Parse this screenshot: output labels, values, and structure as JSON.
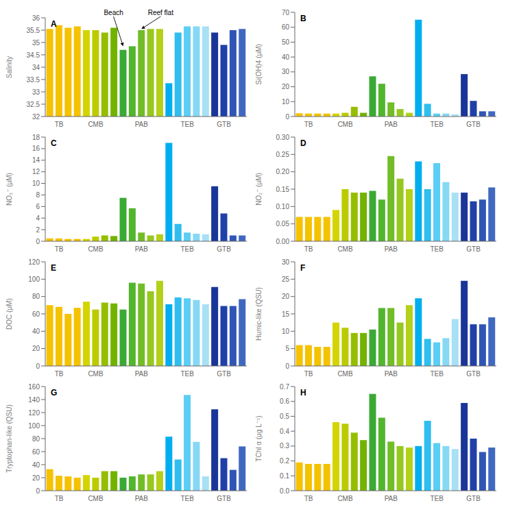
{
  "chart_data": [
    {
      "type": "bar",
      "title": "A",
      "ylabel": "Salinity",
      "grid": false,
      "categories": [
        null,
        "TB",
        null,
        null,
        null,
        "CMB",
        null,
        null,
        null,
        null,
        "PAB",
        null,
        null,
        null,
        null,
        "TEB",
        null,
        null,
        null,
        "GTB",
        null,
        null
      ],
      "values": [
        35.55,
        35.7,
        35.6,
        35.65,
        35.5,
        35.5,
        35.4,
        35.6,
        34.7,
        34.85,
        35.5,
        35.55,
        35.55,
        33.35,
        35.4,
        35.65,
        35.65,
        35.65,
        35.4,
        34.9,
        35.5,
        35.55
      ],
      "colors": [
        "#F5C200",
        "#F5C200",
        "#F5C200",
        "#F5C200",
        "#D4D400",
        "#BCCB00",
        "#96BE00",
        "#72B300",
        "#3AAA35",
        "#52B52E",
        "#72BC28",
        "#96C820",
        "#B5D018",
        "#00AEEF",
        "#30BDEF",
        "#5CCEF5",
        "#86D8F5",
        "#A8E0F5",
        "#1A3598",
        "#2040A8",
        "#3055B5",
        "#4068C0"
      ],
      "ylim": [
        32,
        36
      ],
      "yticks": [
        32,
        32.5,
        33,
        33.5,
        34,
        34.5,
        35,
        35.5,
        36
      ],
      "annotations": [
        {
          "text": "Beach",
          "x": 8,
          "y": 34.85
        },
        {
          "text": "Reef flat",
          "x": 10,
          "y": 35.55
        }
      ]
    },
    {
      "type": "bar",
      "title": "B",
      "ylabel": "Si(OH)4 (μM)",
      "grid": false,
      "categories": [
        null,
        "TB",
        null,
        null,
        null,
        "CMB",
        null,
        null,
        null,
        null,
        "PAB",
        null,
        null,
        null,
        null,
        "TEB",
        null,
        null,
        null,
        "GTB",
        null,
        null
      ],
      "values": [
        2.2,
        2,
        2,
        2,
        2,
        2.5,
        6.5,
        2.5,
        27,
        22,
        9.5,
        5,
        2.5,
        65,
        8.5,
        2,
        2,
        1.5,
        28.5,
        10.5,
        3.5,
        3.5
      ],
      "colors": [
        "#F5C200",
        "#F5C200",
        "#F5C200",
        "#F5C200",
        "#D4D400",
        "#BCCB00",
        "#96BE00",
        "#72B300",
        "#3AAA35",
        "#52B52E",
        "#72BC28",
        "#96C820",
        "#B5D018",
        "#00AEEF",
        "#30BDEF",
        "#5CCEF5",
        "#86D8F5",
        "#A8E0F5",
        "#1A3598",
        "#2040A8",
        "#3055B5",
        "#4068C0"
      ],
      "ylim": [
        0,
        70
      ],
      "yticks": [
        0,
        10,
        20,
        30,
        40,
        50,
        60,
        70
      ]
    },
    {
      "type": "bar",
      "title": "C",
      "ylabel": "NO₃⁻ (μM)",
      "grid": false,
      "categories": [
        null,
        "TB",
        null,
        null,
        null,
        "CMB",
        null,
        null,
        null,
        null,
        "PAB",
        null,
        null,
        null,
        null,
        "TEB",
        null,
        null,
        null,
        "GTB",
        null,
        null
      ],
      "values": [
        0.5,
        0.5,
        0.4,
        0.4,
        0.4,
        0.8,
        1,
        0.9,
        7.5,
        5.7,
        1.5,
        1,
        1.2,
        17,
        3,
        1.5,
        1.3,
        1.2,
        9.5,
        4.8,
        1,
        1
      ],
      "colors": [
        "#F5C200",
        "#F5C200",
        "#F5C200",
        "#F5C200",
        "#D4D400",
        "#BCCB00",
        "#96BE00",
        "#72B300",
        "#3AAA35",
        "#52B52E",
        "#72BC28",
        "#96C820",
        "#B5D018",
        "#00AEEF",
        "#30BDEF",
        "#5CCEF5",
        "#86D8F5",
        "#A8E0F5",
        "#1A3598",
        "#2040A8",
        "#3055B5",
        "#4068C0"
      ],
      "ylim": [
        0,
        18
      ],
      "yticks": [
        0,
        2,
        4,
        6,
        8,
        10,
        12,
        14,
        16,
        18
      ]
    },
    {
      "type": "bar",
      "title": "D",
      "ylabel": "NO₂⁻ (μM)",
      "grid": false,
      "categories": [
        null,
        "TB",
        null,
        null,
        null,
        "CMB",
        null,
        null,
        null,
        null,
        "PAB",
        null,
        null,
        null,
        null,
        "TEB",
        null,
        null,
        null,
        "GTB",
        null,
        null
      ],
      "values": [
        0.07,
        0.07,
        0.07,
        0.07,
        0.09,
        0.15,
        0.14,
        0.14,
        0.145,
        0.12,
        0.245,
        0.18,
        0.15,
        0.23,
        0.15,
        0.225,
        0.17,
        0.14,
        0.14,
        0.115,
        0.12,
        0.155
      ],
      "colors": [
        "#F5C200",
        "#F5C200",
        "#F5C200",
        "#F5C200",
        "#D4D400",
        "#BCCB00",
        "#96BE00",
        "#72B300",
        "#3AAA35",
        "#52B52E",
        "#72BC28",
        "#96C820",
        "#B5D018",
        "#00AEEF",
        "#30BDEF",
        "#5CCEF5",
        "#86D8F5",
        "#A8E0F5",
        "#1A3598",
        "#2040A8",
        "#3055B5",
        "#4068C0"
      ],
      "ylim": [
        0,
        0.3
      ],
      "yticks": [
        {
          "value": 0,
          "label": "0.00"
        },
        0.05,
        {
          "value": 0.1,
          "label": "0.10"
        },
        0.15,
        {
          "value": 0.2,
          "label": "0.20"
        },
        0.25,
        {
          "value": 0.3,
          "label": "0.30"
        }
      ]
    },
    {
      "type": "bar",
      "title": "E",
      "ylabel": "DOC (μM)",
      "grid": false,
      "categories": [
        null,
        "TB",
        null,
        null,
        null,
        "CMB",
        null,
        null,
        null,
        null,
        "PAB",
        null,
        null,
        null,
        null,
        "TEB",
        null,
        null,
        null,
        "GTB",
        null,
        null
      ],
      "values": [
        70,
        68,
        60,
        67,
        74,
        65,
        73,
        72,
        65,
        96,
        95,
        86,
        98,
        71,
        79,
        78,
        76,
        71,
        91,
        69,
        69,
        77
      ],
      "colors": [
        "#F5C200",
        "#F5C200",
        "#F5C200",
        "#F5C200",
        "#D4D400",
        "#BCCB00",
        "#96BE00",
        "#72B300",
        "#3AAA35",
        "#52B52E",
        "#72BC28",
        "#96C820",
        "#B5D018",
        "#00AEEF",
        "#30BDEF",
        "#5CCEF5",
        "#86D8F5",
        "#A8E0F5",
        "#1A3598",
        "#2040A8",
        "#3055B5",
        "#4068C0"
      ],
      "ylim": [
        0,
        120
      ],
      "yticks": [
        0,
        20,
        40,
        60,
        80,
        100,
        120
      ]
    },
    {
      "type": "bar",
      "title": "F",
      "ylabel": "Humic-like (QSU)",
      "grid": false,
      "categories": [
        null,
        "TB",
        null,
        null,
        null,
        "CMB",
        null,
        null,
        null,
        null,
        "PAB",
        null,
        null,
        null,
        null,
        "TEB",
        null,
        null,
        null,
        "GTB",
        null,
        null
      ],
      "values": [
        6,
        6,
        5.5,
        5.5,
        12.5,
        11,
        9.5,
        9.5,
        10.5,
        16.7,
        16.7,
        12.5,
        17.5,
        19.5,
        7.8,
        6.8,
        8,
        13.5,
        24.5,
        12,
        12,
        14
      ],
      "colors": [
        "#F5C200",
        "#F5C200",
        "#F5C200",
        "#F5C200",
        "#D4D400",
        "#BCCB00",
        "#96BE00",
        "#72B300",
        "#3AAA35",
        "#52B52E",
        "#72BC28",
        "#96C820",
        "#B5D018",
        "#00AEEF",
        "#30BDEF",
        "#5CCEF5",
        "#86D8F5",
        "#A8E0F5",
        "#1A3598",
        "#2040A8",
        "#3055B5",
        "#4068C0"
      ],
      "ylim": [
        0,
        30
      ],
      "yticks": [
        0,
        5,
        10,
        15,
        20,
        25,
        30
      ]
    },
    {
      "type": "bar",
      "title": "G",
      "ylabel": "Tryptophan-like (QSU)",
      "grid": false,
      "categories": [
        null,
        "TB",
        null,
        null,
        null,
        "CMB",
        null,
        null,
        null,
        null,
        "PAB",
        null,
        null,
        null,
        null,
        "TEB",
        null,
        null,
        null,
        "GTB",
        null,
        null
      ],
      "values": [
        33,
        23,
        22,
        20,
        24,
        20,
        30,
        30,
        20,
        22,
        25,
        25,
        30,
        83,
        48,
        147,
        75,
        22,
        125,
        50,
        32,
        68
      ],
      "colors": [
        "#F5C200",
        "#F5C200",
        "#F5C200",
        "#F5C200",
        "#D4D400",
        "#BCCB00",
        "#96BE00",
        "#72B300",
        "#3AAA35",
        "#52B52E",
        "#72BC28",
        "#96C820",
        "#B5D018",
        "#00AEEF",
        "#30BDEF",
        "#5CCEF5",
        "#86D8F5",
        "#A8E0F5",
        "#1A3598",
        "#2040A8",
        "#3055B5",
        "#4068C0"
      ],
      "ylim": [
        0,
        160
      ],
      "yticks": [
        0,
        20,
        40,
        60,
        80,
        100,
        120,
        140,
        160
      ]
    },
    {
      "type": "bar",
      "title": "H",
      "ylabel": "TChl α (μg L⁻¹)",
      "grid": false,
      "categories": [
        null,
        "TB",
        null,
        null,
        null,
        "CMB",
        null,
        null,
        null,
        null,
        "PAB",
        null,
        null,
        null,
        null,
        "TEB",
        null,
        null,
        null,
        "GTB",
        null,
        null
      ],
      "values": [
        0.19,
        0.18,
        0.18,
        0.18,
        0.46,
        0.45,
        0.39,
        0.34,
        0.65,
        0.49,
        0.33,
        0.3,
        0.29,
        0.3,
        0.47,
        0.32,
        0.3,
        0.28,
        0.59,
        0.35,
        0.26,
        0.29
      ],
      "colors": [
        "#F5C200",
        "#F5C200",
        "#F5C200",
        "#F5C200",
        "#D4D400",
        "#BCCB00",
        "#96BE00",
        "#72B300",
        "#3AAA35",
        "#52B52E",
        "#72BC28",
        "#96C820",
        "#B5D018",
        "#00AEEF",
        "#30BDEF",
        "#5CCEF5",
        "#86D8F5",
        "#A8E0F5",
        "#1A3598",
        "#2040A8",
        "#3055B5",
        "#4068C0"
      ],
      "ylim": [
        0,
        0.7
      ],
      "yticks": [
        {
          "value": 0,
          "label": "0.0"
        },
        0.1,
        0.2,
        0.3,
        0.4,
        0.5,
        0.6,
        0.7
      ]
    }
  ]
}
